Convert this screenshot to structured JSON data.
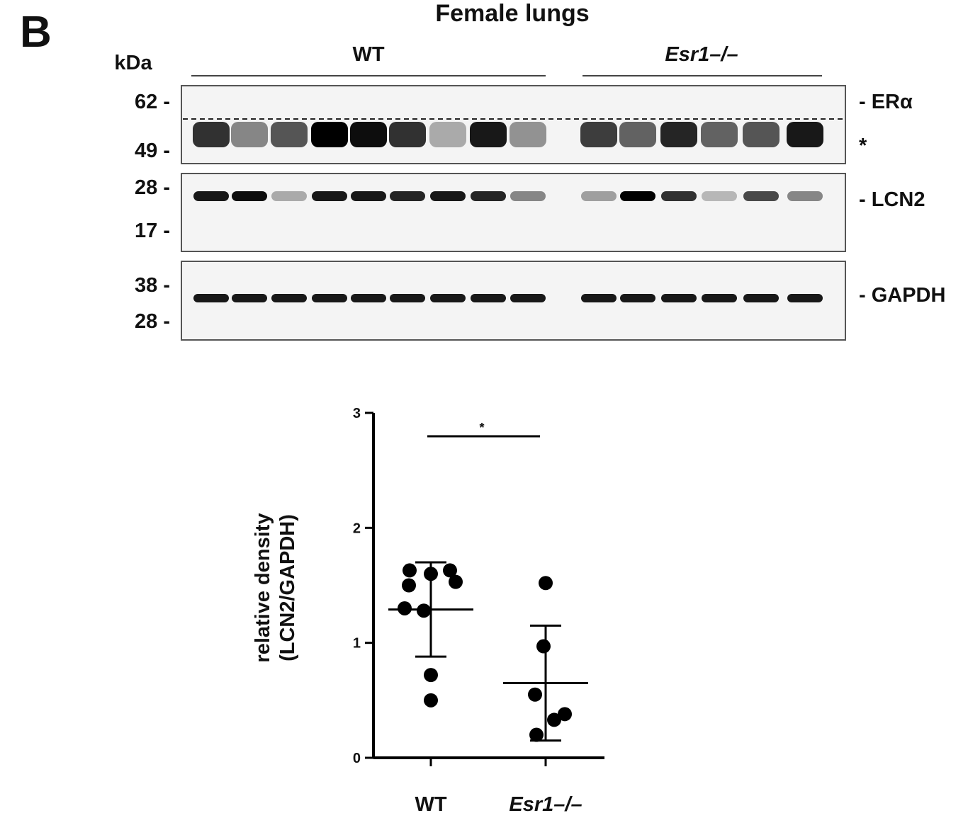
{
  "panel_label": "B",
  "blot": {
    "title": "Female lungs",
    "kda_label": "kDa",
    "groups": [
      "WT",
      "Esr1–/–"
    ],
    "panels": [
      {
        "markers": [
          "62 -",
          "49 -"
        ],
        "labels": [
          "- ERα",
          "*"
        ]
      },
      {
        "markers": [
          "28 -",
          "17 -"
        ],
        "labels": [
          "- LCN2"
        ]
      },
      {
        "markers": [
          "38 -",
          "28 -"
        ],
        "labels": [
          "- GAPDH"
        ]
      }
    ]
  },
  "chart_data": {
    "type": "scatter",
    "y_label": [
      "relative density",
      "(LCN2/GAPDH)"
    ],
    "categories": [
      "WT",
      "Esr1–/–"
    ],
    "series": [
      {
        "name": "WT",
        "color": "#000000",
        "values": [
          1.63,
          1.6,
          1.63,
          1.5,
          1.53,
          1.3,
          1.28,
          0.72,
          0.5
        ],
        "mean": 1.29,
        "sd": 0.41
      },
      {
        "name": "Esr1–/–",
        "color": "#000000",
        "values": [
          1.52,
          0.97,
          0.55,
          0.38,
          0.33,
          0.2
        ],
        "mean": 0.65,
        "sd": 0.5
      }
    ],
    "ylim": [
      0,
      3
    ],
    "yticks": [
      0,
      1,
      2,
      3
    ],
    "significance": "*"
  }
}
